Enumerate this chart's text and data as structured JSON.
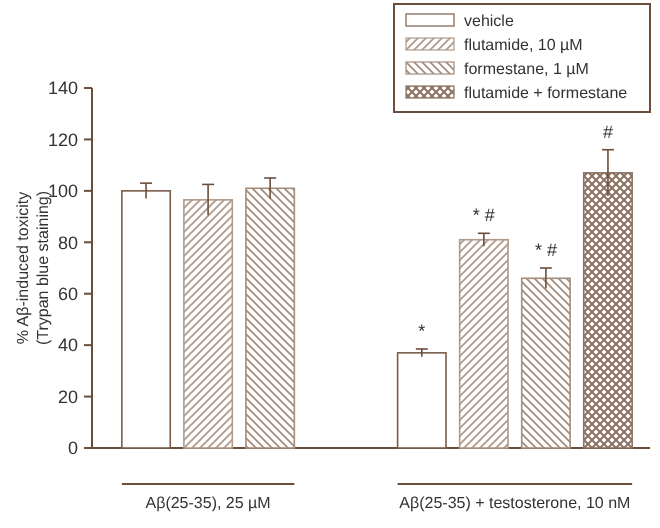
{
  "chart_data": {
    "type": "bar",
    "ylabel": "% Aβ-induced toxicity\n(Trypan blue staining)",
    "categories": [
      "Aβ(25-35), 25 µM",
      "Aβ(25-35) + testosterone, 10 nM"
    ],
    "series": [
      {
        "name": "vehicle",
        "color": "#7a5c4a",
        "values": [
          100,
          37
        ],
        "errors": [
          3,
          1.5
        ]
      },
      {
        "name": "flutamide, 10 µM",
        "color": "#b09a8a",
        "values": [
          96.5,
          81
        ],
        "errors": [
          6,
          2.5
        ]
      },
      {
        "name": "formestane, 1 µM",
        "color": "#a38d7d",
        "values": [
          101,
          66
        ],
        "errors": [
          4,
          4
        ]
      },
      {
        "name": "flutamide + formestane",
        "color": "#8a7262",
        "values": [
          null,
          107
        ],
        "errors": [
          null,
          9
        ]
      }
    ],
    "ylim": [
      0,
      140
    ],
    "yticks": [
      0,
      20,
      40,
      60,
      80,
      100,
      120,
      140
    ],
    "legend": "top right",
    "annotations": [
      "*",
      "* #",
      "* #",
      "#"
    ]
  }
}
